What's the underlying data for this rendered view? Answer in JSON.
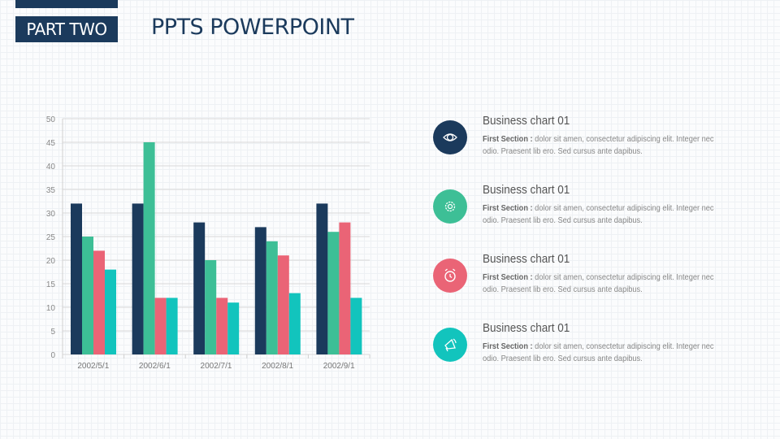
{
  "header": {
    "tag": "PART TWO",
    "title": "PPTS POWERPOINT"
  },
  "colors": {
    "navy": "#1b3a5c",
    "green": "#3dbf96",
    "red": "#ea6476",
    "teal": "#12c4bd"
  },
  "chart_data": {
    "type": "bar",
    "categories": [
      "2002/5/1",
      "2002/6/1",
      "2002/7/1",
      "2002/8/1",
      "2002/9/1"
    ],
    "series": [
      {
        "color": "#1b3a5c",
        "values": [
          32,
          32,
          28,
          27,
          32
        ]
      },
      {
        "color": "#3dbf96",
        "values": [
          25,
          45,
          20,
          24,
          26
        ]
      },
      {
        "color": "#ea6476",
        "values": [
          22,
          12,
          12,
          21,
          28
        ]
      },
      {
        "color": "#12c4bd",
        "values": [
          18,
          12,
          11,
          13,
          12
        ]
      }
    ],
    "ylim": [
      0,
      50
    ],
    "yticks": [
      0,
      5,
      10,
      15,
      20,
      25,
      30,
      35,
      40,
      45,
      50
    ],
    "grid": true,
    "legend": "none"
  },
  "items": [
    {
      "icon": "eye-icon",
      "color": "#1b3a5c",
      "title": "Business chart 01",
      "label": "First Section :",
      "text": " dolor sit amen, consectetur adipiscing elit. Integer nec odio. Praesent lib ero. Sed cursus ante dapibus."
    },
    {
      "icon": "gear-icon",
      "color": "#3dbf96",
      "title": "Business chart 01",
      "label": "First Section :",
      "text": " dolor sit amen, consectetur adipiscing elit. Integer nec odio. Praesent lib ero. Sed cursus ante dapibus."
    },
    {
      "icon": "alarm-clock-icon",
      "color": "#ea6476",
      "title": "Business chart 01",
      "label": "First Section :",
      "text": " dolor sit amen, consectetur adipiscing elit. Integer nec odio. Praesent lib ero. Sed cursus ante dapibus."
    },
    {
      "icon": "megaphone-icon",
      "color": "#12c4bd",
      "title": "Business chart 01",
      "label": "First Section :",
      "text": " dolor sit amen, consectetur adipiscing elit. Integer nec odio. Praesent lib ero. Sed cursus ante dapibus."
    }
  ]
}
